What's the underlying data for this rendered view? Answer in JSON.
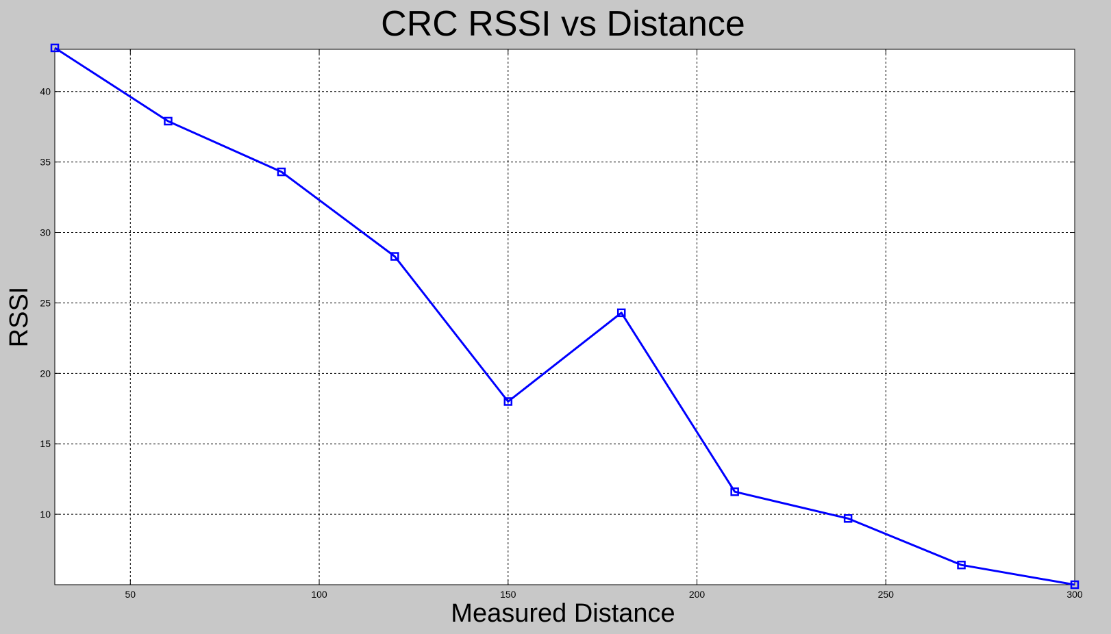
{
  "chart_data": {
    "type": "line",
    "title": "CRC RSSI vs Distance",
    "xlabel": "Measured Distance",
    "ylabel": "RSSI",
    "xlim": [
      30,
      300
    ],
    "ylim": [
      5,
      43
    ],
    "xticks": [
      50,
      100,
      150,
      200,
      250,
      300
    ],
    "yticks": [
      10,
      15,
      20,
      25,
      30,
      35,
      40
    ],
    "grid": true,
    "line_color": "#0000ff",
    "marker": "square",
    "x": [
      30,
      60,
      90,
      120,
      150,
      180,
      210,
      240,
      270,
      300
    ],
    "y": [
      43.1,
      37.9,
      34.3,
      28.3,
      18.0,
      24.3,
      11.6,
      9.7,
      6.4,
      5.0
    ]
  }
}
